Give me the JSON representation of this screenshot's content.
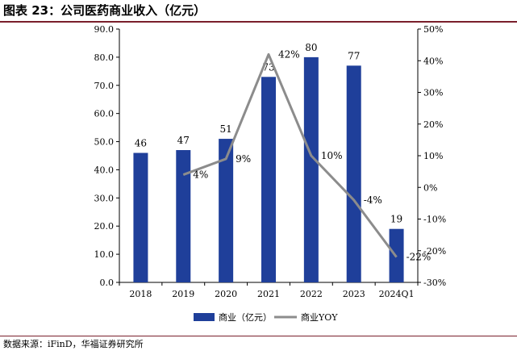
{
  "title": "图表 23：公司医药商业收入（亿元）",
  "source": "数据来源：iFinD，华福证券研究所",
  "colors": {
    "bar": "#1f3f9a",
    "line": "#8c8c8c",
    "rule": "#7a1f2b"
  },
  "chart_data": {
    "type": "bar",
    "categories": [
      "2018",
      "2019",
      "2020",
      "2021",
      "2022",
      "2023",
      "2024Q1"
    ],
    "series": [
      {
        "name": "商业（亿元）",
        "type": "bar",
        "axis": "left",
        "values": [
          46,
          47,
          51,
          73,
          80,
          77,
          19
        ],
        "labels": [
          "46",
          "47",
          "51",
          "73",
          "80",
          "77",
          "19"
        ]
      },
      {
        "name": "商业YOY",
        "type": "line",
        "axis": "right",
        "values": [
          null,
          4,
          9,
          42,
          10,
          -4,
          -22
        ],
        "labels": [
          "",
          "4%",
          "9%",
          "42%",
          "10%",
          "-4%",
          "-22%"
        ]
      }
    ],
    "y_left": {
      "min": 0,
      "max": 90,
      "step": 10,
      "ticks": [
        "0.0",
        "10.0",
        "20.0",
        "30.0",
        "40.0",
        "50.0",
        "60.0",
        "70.0",
        "80.0",
        "90.0"
      ]
    },
    "y_right": {
      "min": -30,
      "max": 50,
      "step": 10,
      "ticks": [
        "-30%",
        "-20%",
        "-10%",
        "0%",
        "10%",
        "20%",
        "30%",
        "40%",
        "50%"
      ]
    },
    "legend": {
      "position": "bottom",
      "items": [
        "商业（亿元）",
        "商业YOY"
      ]
    },
    "grid": false
  }
}
